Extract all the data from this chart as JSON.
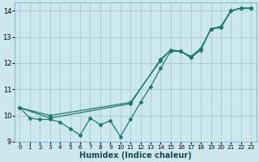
{
  "xlabel": "Humidex (Indice chaleur)",
  "background_color": "#cce8ee",
  "grid_color": "#aacdd6",
  "line_color": "#1a7a6e",
  "xlim": [
    -0.5,
    23.5
  ],
  "ylim": [
    9,
    14.3
  ],
  "xticks": [
    0,
    1,
    2,
    3,
    4,
    5,
    6,
    7,
    8,
    9,
    10,
    11,
    12,
    13,
    14,
    15,
    16,
    17,
    18,
    19,
    20,
    21,
    22,
    23
  ],
  "yticks": [
    9,
    10,
    11,
    12,
    13,
    14
  ],
  "series_noisy_x": [
    0,
    1,
    2,
    3,
    4,
    5,
    6,
    7,
    8,
    9,
    10,
    11,
    12,
    13,
    14,
    15,
    16,
    17,
    18,
    19,
    20,
    21,
    22,
    23
  ],
  "series_noisy_y": [
    10.3,
    9.9,
    9.85,
    9.85,
    9.75,
    9.5,
    9.25,
    9.9,
    9.65,
    9.8,
    9.2,
    9.85,
    10.5,
    11.1,
    11.8,
    12.45,
    12.45,
    12.2,
    12.5,
    13.3,
    13.35,
    14.0,
    14.1,
    14.1
  ],
  "series_trend1_x": [
    0,
    3,
    11,
    14,
    15,
    16,
    17,
    18,
    19,
    20,
    21,
    22,
    23
  ],
  "series_trend1_y": [
    10.3,
    9.9,
    10.45,
    12.15,
    12.5,
    12.45,
    12.25,
    12.55,
    13.3,
    13.4,
    14.0,
    14.1,
    14.1
  ],
  "series_trend2_x": [
    0,
    3,
    11,
    14,
    15,
    16,
    17,
    18,
    19,
    20,
    21,
    22,
    23
  ],
  "series_trend2_y": [
    10.3,
    10.0,
    10.5,
    12.1,
    12.5,
    12.45,
    12.25,
    12.55,
    13.3,
    13.4,
    14.0,
    14.1,
    14.1
  ]
}
